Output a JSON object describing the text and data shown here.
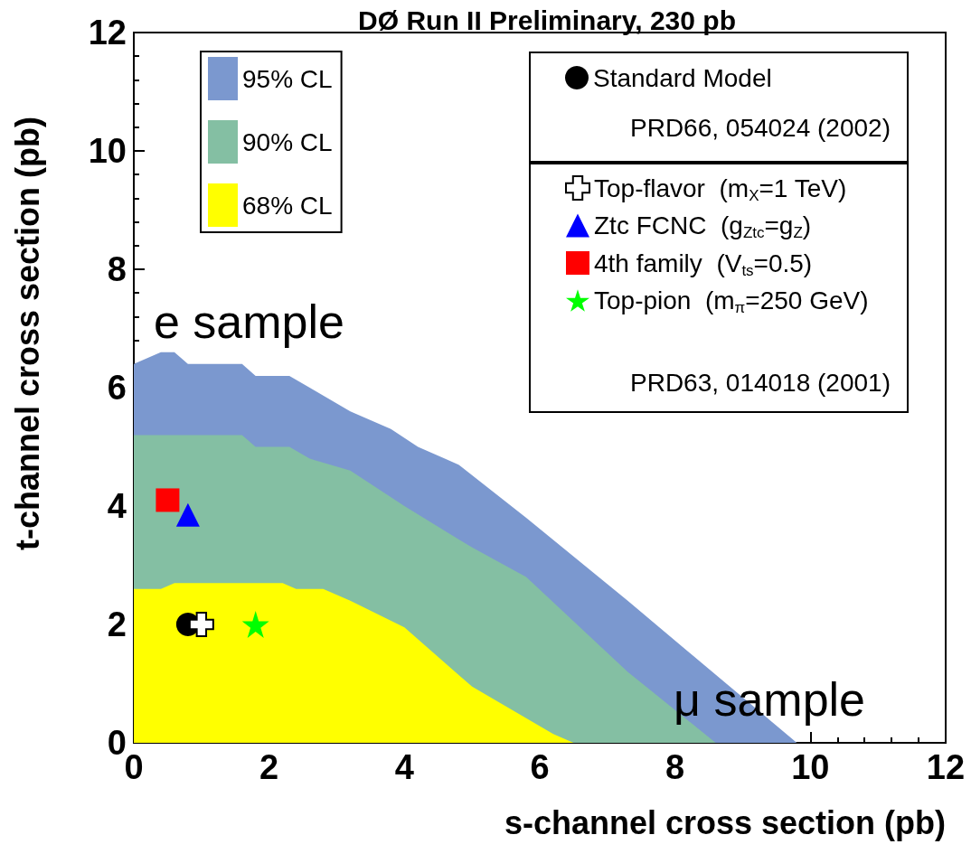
{
  "chart_data": {
    "type": "area",
    "title": "DØ Run II Preliminary, 230 pb",
    "xlabel": "s-channel cross section (pb)",
    "ylabel": "t-channel cross section (pb)",
    "xlim": [
      0,
      12
    ],
    "ylim": [
      0,
      12
    ],
    "xticks": [
      0,
      2,
      4,
      6,
      8,
      10,
      12
    ],
    "yticks": [
      0,
      2,
      4,
      6,
      8,
      10,
      12
    ],
    "grid": false,
    "legend": "top",
    "series": [
      {
        "name": "95% CL",
        "color": "#7b98cf",
        "x": [
          0,
          0.4,
          0.6,
          0.8,
          1.6,
          1.8,
          2.3,
          2.6,
          3.2,
          3.8,
          4.2,
          4.8,
          5.8,
          7.3,
          9.8
        ],
        "values": [
          6.4,
          6.6,
          6.6,
          6.4,
          6.4,
          6.2,
          6.2,
          6.0,
          5.6,
          5.3,
          5.0,
          4.7,
          3.8,
          2.4,
          0
        ]
      },
      {
        "name": "90% CL",
        "color": "#84bfa3",
        "x": [
          0,
          1.6,
          1.8,
          2.3,
          2.6,
          3.2,
          4.0,
          5.0,
          5.8,
          7.3,
          8.6
        ],
        "values": [
          5.2,
          5.2,
          5.0,
          5.0,
          4.8,
          4.6,
          4.0,
          3.3,
          2.8,
          1.2,
          0
        ]
      },
      {
        "name": "68% CL",
        "color": "#ffff00",
        "x": [
          0,
          0.4,
          0.6,
          2.2,
          2.4,
          2.8,
          3.2,
          4.0,
          5.0,
          6.2,
          6.5
        ],
        "values": [
          2.6,
          2.6,
          2.7,
          2.7,
          2.6,
          2.6,
          2.4,
          1.95,
          0.95,
          0.15,
          0
        ]
      },
      {
        "name": "Standard Model",
        "type": "scatter",
        "marker": "circle",
        "color": "#000000",
        "x": [
          0.8
        ],
        "values": [
          2.0
        ]
      },
      {
        "name": "Top-flavor  (m$_{X}$=1 TeV)",
        "type": "scatter",
        "marker": "cross",
        "color": "#ffffff",
        "x": [
          1.0
        ],
        "values": [
          2.0
        ]
      },
      {
        "name": "Ztc FCNC  (g$_{Ztc}$=g$_{Z}$)",
        "type": "scatter",
        "marker": "triangle",
        "color": "#0000ff",
        "x": [
          0.8
        ],
        "values": [
          3.85
        ]
      },
      {
        "name": "4th family  (V$_{ts}$=0.5)",
        "type": "scatter",
        "marker": "square",
        "color": "#ff0000",
        "x": [
          0.5
        ],
        "values": [
          4.1
        ]
      },
      {
        "name": "Top-pion  (m$_{π}$=250 GeV)",
        "type": "scatter",
        "marker": "star",
        "color": "#00ff00",
        "x": [
          1.8
        ],
        "values": [
          2.0
        ]
      }
    ],
    "annotations": [
      "PRD66, 054024 (2002)",
      "PRD63, 014018 (2001)",
      "e sample",
      "μ sample"
    ]
  }
}
